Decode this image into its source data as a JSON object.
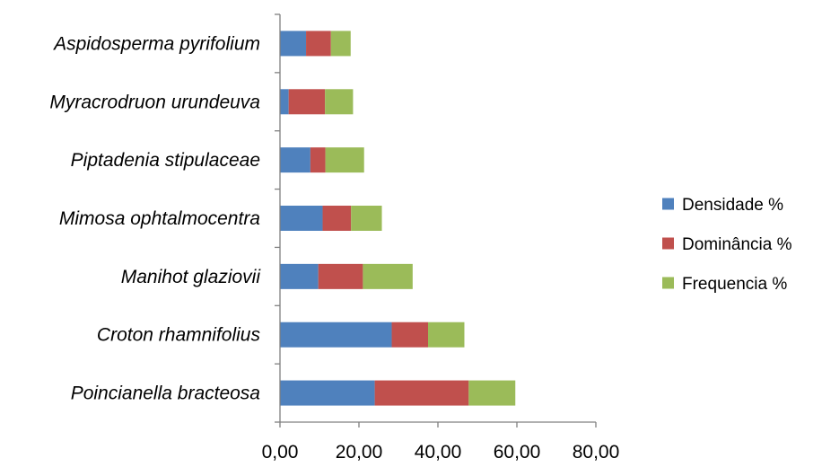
{
  "chart_data": {
    "type": "bar",
    "orientation": "horizontal",
    "stacked": true,
    "categories": [
      "Poincianella bracteosa",
      "Croton rhamnifolius",
      "Manihot glaziovii",
      "Mimosa ophtalmocentra",
      "Piptadenia stipulaceae",
      "Myracrodruon urundeuva",
      "Aspidosperma pyrifolium"
    ],
    "series": [
      {
        "name": "Densidade %",
        "color": "#4F81BD",
        "values": [
          24.0,
          28.3,
          9.7,
          10.8,
          7.7,
          2.2,
          6.6
        ]
      },
      {
        "name": "Dominância %",
        "color": "#C0504D",
        "values": [
          23.8,
          9.2,
          11.3,
          7.2,
          3.8,
          9.2,
          6.3
        ]
      },
      {
        "name": "Frequencia %",
        "color": "#9BBB59",
        "values": [
          11.8,
          9.2,
          12.6,
          7.8,
          9.8,
          7.1,
          5.0
        ]
      }
    ],
    "xticks": [
      "0,00",
      "20,00",
      "40,00",
      "60,00",
      "80,00"
    ],
    "xlim": [
      0,
      80
    ],
    "title": "",
    "xlabel": "",
    "ylabel": "",
    "grid": false,
    "legend": "right"
  }
}
